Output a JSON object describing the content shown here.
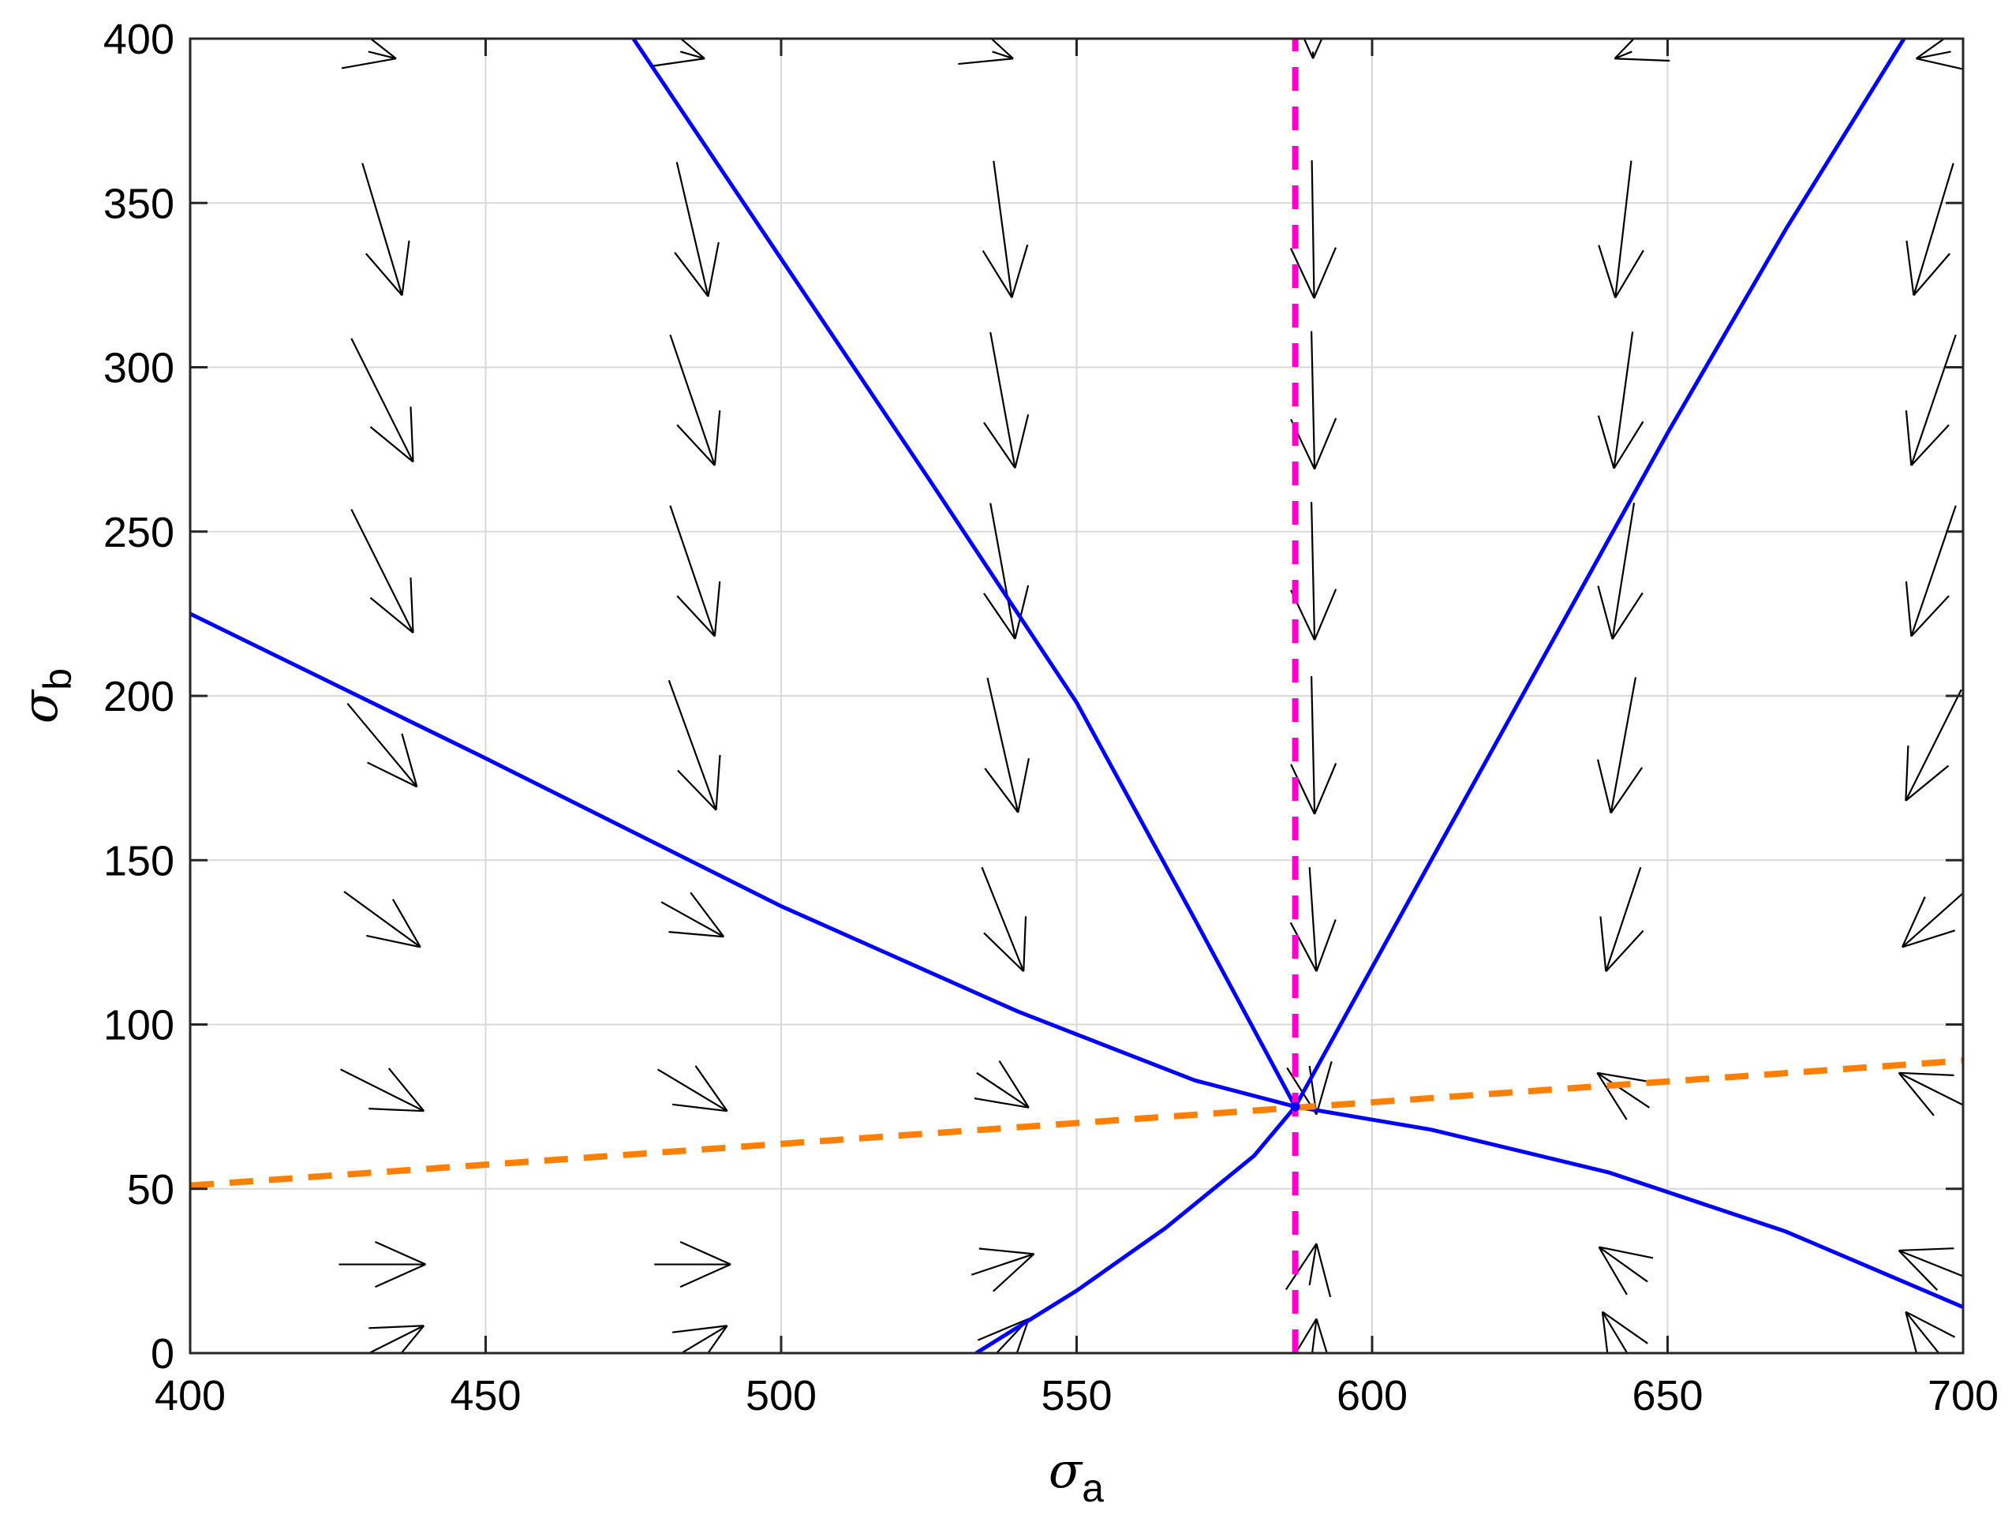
{
  "chart_data": {
    "type": "phase-portrait (quiver + line)",
    "title": "",
    "xlabel": {
      "symbol": "σ",
      "subscript": "a"
    },
    "ylabel": {
      "symbol": "σ",
      "subscript": "b"
    },
    "xlim": [
      400,
      700
    ],
    "ylim": [
      0,
      400
    ],
    "xticks": [
      400,
      450,
      500,
      550,
      600,
      650,
      700
    ],
    "yticks": [
      0,
      50,
      100,
      150,
      200,
      250,
      300,
      350,
      400
    ],
    "grid": true,
    "colors": {
      "separatrix": "#0000ff",
      "nullcline_a": "#ff00cc",
      "nullcline_b": "#ff8000",
      "arrows": "#000000",
      "grid": "#d9d9d9",
      "axes": "#262626"
    },
    "fixed_point": {
      "x": 587,
      "y": 75
    },
    "series": [
      {
        "name": "separatrix-upper-left",
        "style": "solid",
        "color": "#0000ff",
        "x": [
          475,
          500,
          525,
          550,
          570,
          587
        ],
        "y": [
          400,
          333,
          266,
          198,
          132,
          75
        ]
      },
      {
        "name": "separatrix-upper-right",
        "style": "solid",
        "color": "#0000ff",
        "x": [
          587,
          610,
          630,
          650,
          670,
          690
        ],
        "y": [
          75,
          150,
          215,
          280,
          342,
          400
        ]
      },
      {
        "name": "separatrix-left",
        "style": "solid",
        "color": "#0000ff",
        "x": [
          400,
          450,
          500,
          540,
          570,
          587
        ],
        "y": [
          225,
          181,
          136,
          104,
          83,
          75
        ]
      },
      {
        "name": "separatrix-right",
        "style": "solid",
        "color": "#0000ff",
        "x": [
          587,
          610,
          640,
          670,
          700
        ],
        "y": [
          75,
          68,
          55,
          37,
          14
        ]
      },
      {
        "name": "separatrix-lower",
        "style": "solid",
        "color": "#0000ff",
        "x": [
          533,
          550,
          565,
          580,
          587
        ],
        "y": [
          0,
          19,
          38,
          60,
          75
        ]
      },
      {
        "name": "nullcline-vertical",
        "style": "dashed",
        "color": "#ff00cc",
        "x": [
          587,
          587
        ],
        "y": [
          0,
          400
        ]
      },
      {
        "name": "nullcline-horizontal",
        "style": "dashed",
        "color": "#ff8000",
        "x": [
          400,
          700
        ],
        "y": [
          51,
          89
        ]
      }
    ],
    "quiver": {
      "grid_x": [
        432.5,
        485,
        537.5,
        590,
        642.5,
        695
      ],
      "grid_y": [
        395,
        342,
        290,
        238,
        185,
        132,
        80,
        27,
        2
      ],
      "vectors": [
        [
          [
            8,
            -1
          ],
          [
            7,
            -1
          ],
          [
            6,
            -1
          ],
          [
            0,
            -1
          ],
          [
            -5,
            -1
          ],
          [
            -10,
            -1
          ]
        ],
        [
          [
            18,
            -30
          ],
          [
            14,
            -30
          ],
          [
            8,
            -30
          ],
          [
            1,
            -30
          ],
          [
            -7,
            -30
          ],
          [
            -18,
            -30
          ]
        ],
        [
          [
            22,
            -22
          ],
          [
            15,
            -22
          ],
          [
            8,
            -22
          ],
          [
            1,
            -22
          ],
          [
            -6,
            -22
          ],
          [
            -15,
            -22
          ]
        ],
        [
          [
            22,
            -22
          ],
          [
            15,
            -22
          ],
          [
            8,
            -22
          ],
          [
            1,
            -22
          ],
          [
            -7,
            -22
          ],
          [
            -15,
            -22
          ]
        ],
        [
          [
            20,
            -12
          ],
          [
            16,
            -22
          ],
          [
            10,
            -22
          ],
          [
            1,
            -22
          ],
          [
            -8,
            -22
          ],
          [
            -16,
            -16
          ]
        ],
        [
          [
            22,
            -8
          ],
          [
            18,
            -5
          ],
          [
            12,
            -15
          ],
          [
            2,
            -15
          ],
          [
            -10,
            -15
          ],
          [
            -18,
            -8
          ]
        ],
        [
          [
            24,
            -6
          ],
          [
            20,
            -6
          ],
          [
            15,
            -5
          ],
          [
            2,
            -7
          ],
          [
            -15,
            5
          ],
          [
            -20,
            5
          ]
        ],
        [
          [
            25,
            0
          ],
          [
            22,
            0
          ],
          [
            18,
            3
          ],
          [
            2,
            6
          ],
          [
            -14,
            5
          ],
          [
            -20,
            4
          ]
        ],
        [
          [
            24,
            6
          ],
          [
            20,
            6
          ],
          [
            15,
            8
          ],
          [
            2,
            8
          ],
          [
            -12,
            10
          ],
          [
            -16,
            10
          ]
        ]
      ]
    }
  }
}
